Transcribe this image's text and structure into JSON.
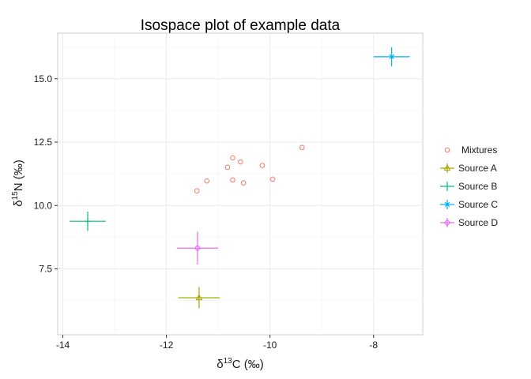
{
  "chart_data": {
    "type": "scatter",
    "title": "Isospace plot of example data",
    "xlabel": {
      "prefix": "δ",
      "sup": "13",
      "rest": "C (‰)"
    },
    "ylabel": {
      "prefix": "δ",
      "sup": "15",
      "rest": "N (‰)"
    },
    "xlim": [
      -14.1,
      -7.05
    ],
    "ylim": [
      4.9,
      16.8
    ],
    "x_ticks": [
      -14,
      -12,
      -10,
      -8
    ],
    "x_tick_labels": [
      "-14",
      "-12",
      "-10",
      "-8"
    ],
    "y_ticks": [
      7.5,
      10.0,
      12.5,
      15.0
    ],
    "y_tick_labels": [
      "7.5",
      "10.0",
      "12.5",
      "15.0"
    ],
    "grid": true,
    "legend_position": "right",
    "mixtures": {
      "name": "Mixtures",
      "color": "#F8766D",
      "marker": "circle-open",
      "points": [
        {
          "x": -11.41,
          "y": 10.58
        },
        {
          "x": -11.22,
          "y": 10.97
        },
        {
          "x": -10.82,
          "y": 11.51
        },
        {
          "x": -10.72,
          "y": 11.88
        },
        {
          "x": -10.72,
          "y": 11.01
        },
        {
          "x": -10.57,
          "y": 11.72
        },
        {
          "x": -10.51,
          "y": 10.89
        },
        {
          "x": -10.15,
          "y": 11.58
        },
        {
          "x": -9.95,
          "y": 11.04
        },
        {
          "x": -9.38,
          "y": 12.29
        }
      ]
    },
    "sources": [
      {
        "name": "Source A",
        "color": "#A3A500",
        "marker": "triangle-open",
        "x": -11.37,
        "y": 6.36,
        "x_sd": 0.4,
        "y_sd": 0.42
      },
      {
        "name": "Source B",
        "color": "#00BF7D",
        "marker": "plus",
        "x": -13.52,
        "y": 9.38,
        "x_sd": 0.35,
        "y_sd": 0.38
      },
      {
        "name": "Source C",
        "color": "#00B0F6",
        "marker": "cross",
        "x": -7.65,
        "y": 15.87,
        "x_sd": 0.35,
        "y_sd": 0.38
      },
      {
        "name": "Source D",
        "color": "#E76BF3",
        "marker": "diamond-open",
        "x": -11.4,
        "y": 8.32,
        "x_sd": 0.4,
        "y_sd": 0.65
      }
    ]
  }
}
